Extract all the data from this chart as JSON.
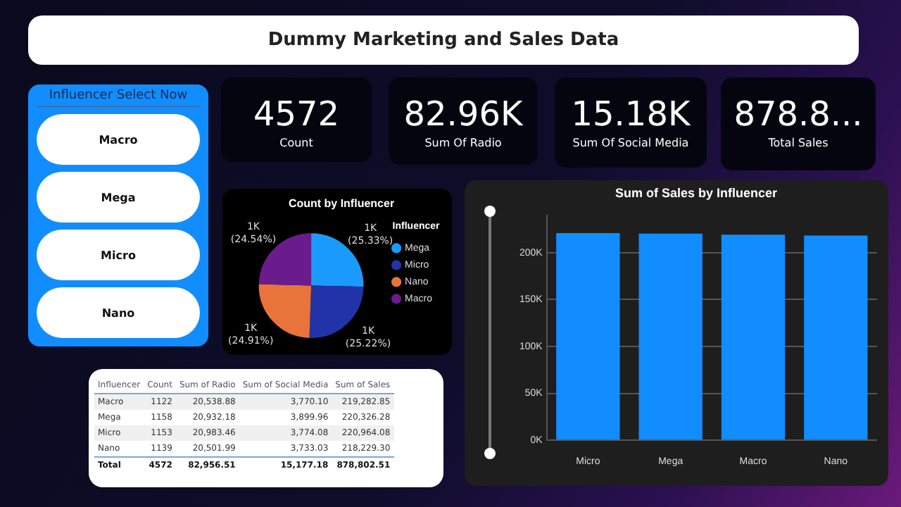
{
  "chart_data": [
    {
      "type": "other",
      "title": "Dummy Marketing and Sales Data"
    },
    {
      "type": "other",
      "title": "Influencer Select Now",
      "categories": [
        "Macro",
        "Mega",
        "Micro",
        "Nano"
      ]
    },
    {
      "type": "other",
      "categories": [
        "Count",
        "Sum Of Radio",
        "Sum Of Social Media",
        "Total Sales"
      ],
      "value_labels": [
        "4572",
        "82.96K",
        "15.18K",
        "878.8..."
      ]
    },
    {
      "type": "pie",
      "title": "Count by Influencer",
      "legend_title": "Influencer",
      "legend": "right",
      "categories": [
        "Mega",
        "Micro",
        "Nano",
        "Macro"
      ],
      "values": [
        1158,
        1153,
        1139,
        1122
      ],
      "colors": [
        "#1a9bfc",
        "#2233a8",
        "#e8743b",
        "#6b1c8c"
      ],
      "value_labels": [
        "1K (25.33%)",
        "1K (25.22%)",
        "1K (24.91%)",
        "1K (24.54%)"
      ]
    },
    {
      "type": "bar",
      "title": "Sum of Sales by Influencer",
      "categories": [
        "Micro",
        "Mega",
        "Macro",
        "Nano"
      ],
      "values": [
        220964.08,
        220326.28,
        219282.85,
        218229.3
      ],
      "color": "#118dff",
      "ylim": [
        0,
        240000
      ],
      "yticks": [
        {
          "value": 0,
          "label": "0K"
        },
        {
          "value": 50000,
          "label": "50K"
        },
        {
          "value": 100000,
          "label": "100K"
        },
        {
          "value": 150000,
          "label": "150K"
        },
        {
          "value": 200000,
          "label": "200K"
        }
      ],
      "grid": "y"
    },
    {
      "type": "other",
      "ylabel": "Influencer",
      "categories": [
        "Count",
        "Sum of Radio",
        "Sum of Social Media",
        "Sum of Sales"
      ],
      "y_categories": [
        "Macro",
        "Mega",
        "Micro",
        "Nano",
        "Total"
      ],
      "cell_labels": [
        [
          "1122",
          "20,538.88",
          "3,770.10",
          "219,282.85"
        ],
        [
          "1158",
          "20,932.18",
          "3,899.96",
          "220,326.28"
        ],
        [
          "1153",
          "20,983.46",
          "3,774.08",
          "220,964.08"
        ],
        [
          "1139",
          "20,501.99",
          "3,733.03",
          "218,229.30"
        ],
        [
          "4572",
          "82,956.51",
          "15,177.18",
          "878,802.51"
        ]
      ]
    }
  ]
}
